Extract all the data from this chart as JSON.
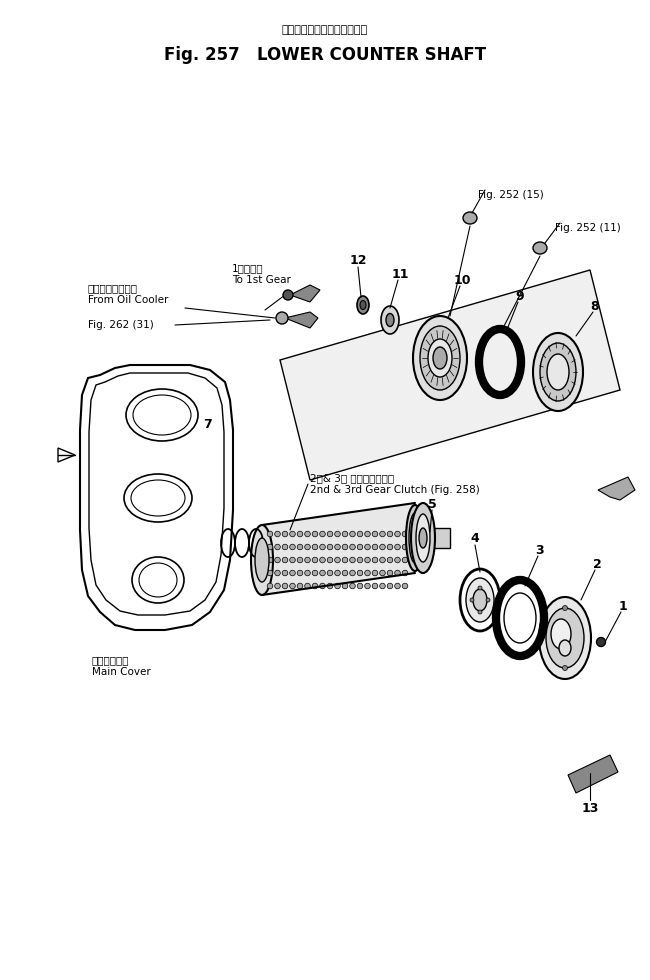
{
  "title_japanese": "ロワー　カウンタ　シャフト",
  "title_english": "Fig. 257   LOWER COUNTER SHAFT",
  "background_color": "#ffffff",
  "text_color": "#000000",
  "line_color": "#000000",
  "labels": {
    "fig252_15": "Fig. 252 (15)",
    "fig252_11": "Fig. 252 (11)",
    "fig262_31": "Fig. 262 (31)",
    "to_1st_gear_jp": "1速ギヤへ",
    "to_1st_gear_en": "To 1st Gear",
    "from_oil_cooler_jp": "オイルクーラより",
    "from_oil_cooler_en": "From Oil Cooler",
    "clutch_jp": "2速& 3速 ボヤークラッチ",
    "clutch_en": "2nd & 3rd Gear Clutch (Fig. 258)",
    "main_cover_jp": "メインカバー",
    "main_cover_en": "Main Cover"
  },
  "figsize": [
    6.5,
    9.8
  ],
  "dpi": 100
}
